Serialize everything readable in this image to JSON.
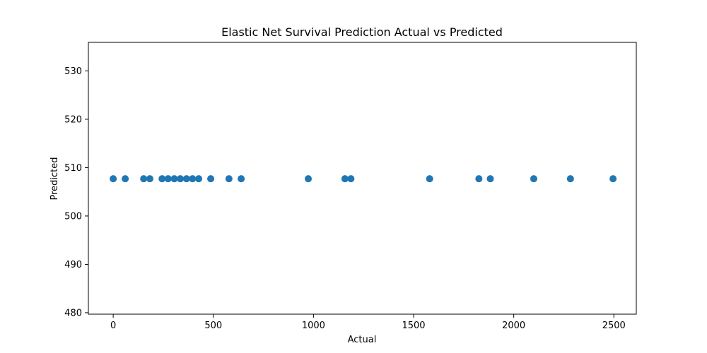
{
  "chart_data": {
    "type": "scatter",
    "title": "Elastic Net Survival Prediction Actual vs Predicted",
    "xlabel": "Actual",
    "ylabel": "Predicted",
    "xlim": [
      -124,
      2612
    ],
    "ylim": [
      479.7,
      535.9
    ],
    "xticks": [
      0,
      500,
      1000,
      1500,
      2000,
      2500
    ],
    "yticks": [
      480,
      490,
      500,
      510,
      520,
      530
    ],
    "grid": false,
    "marker_color": "#1f77b4",
    "points": [
      {
        "x": 0,
        "y": 507.7
      },
      {
        "x": 60,
        "y": 507.7
      },
      {
        "x": 152,
        "y": 507.7
      },
      {
        "x": 183,
        "y": 507.7
      },
      {
        "x": 244,
        "y": 507.7
      },
      {
        "x": 274,
        "y": 507.7
      },
      {
        "x": 305,
        "y": 507.7
      },
      {
        "x": 335,
        "y": 507.7
      },
      {
        "x": 366,
        "y": 507.7
      },
      {
        "x": 396,
        "y": 507.7
      },
      {
        "x": 427,
        "y": 507.7
      },
      {
        "x": 487,
        "y": 507.7
      },
      {
        "x": 578,
        "y": 507.7
      },
      {
        "x": 639,
        "y": 507.7
      },
      {
        "x": 974,
        "y": 507.7
      },
      {
        "x": 1157,
        "y": 507.7
      },
      {
        "x": 1187,
        "y": 507.7
      },
      {
        "x": 1580,
        "y": 507.7
      },
      {
        "x": 1826,
        "y": 507.7
      },
      {
        "x": 1883,
        "y": 507.7
      },
      {
        "x": 2100,
        "y": 507.7
      },
      {
        "x": 2283,
        "y": 507.7
      },
      {
        "x": 2496,
        "y": 507.7
      }
    ]
  }
}
